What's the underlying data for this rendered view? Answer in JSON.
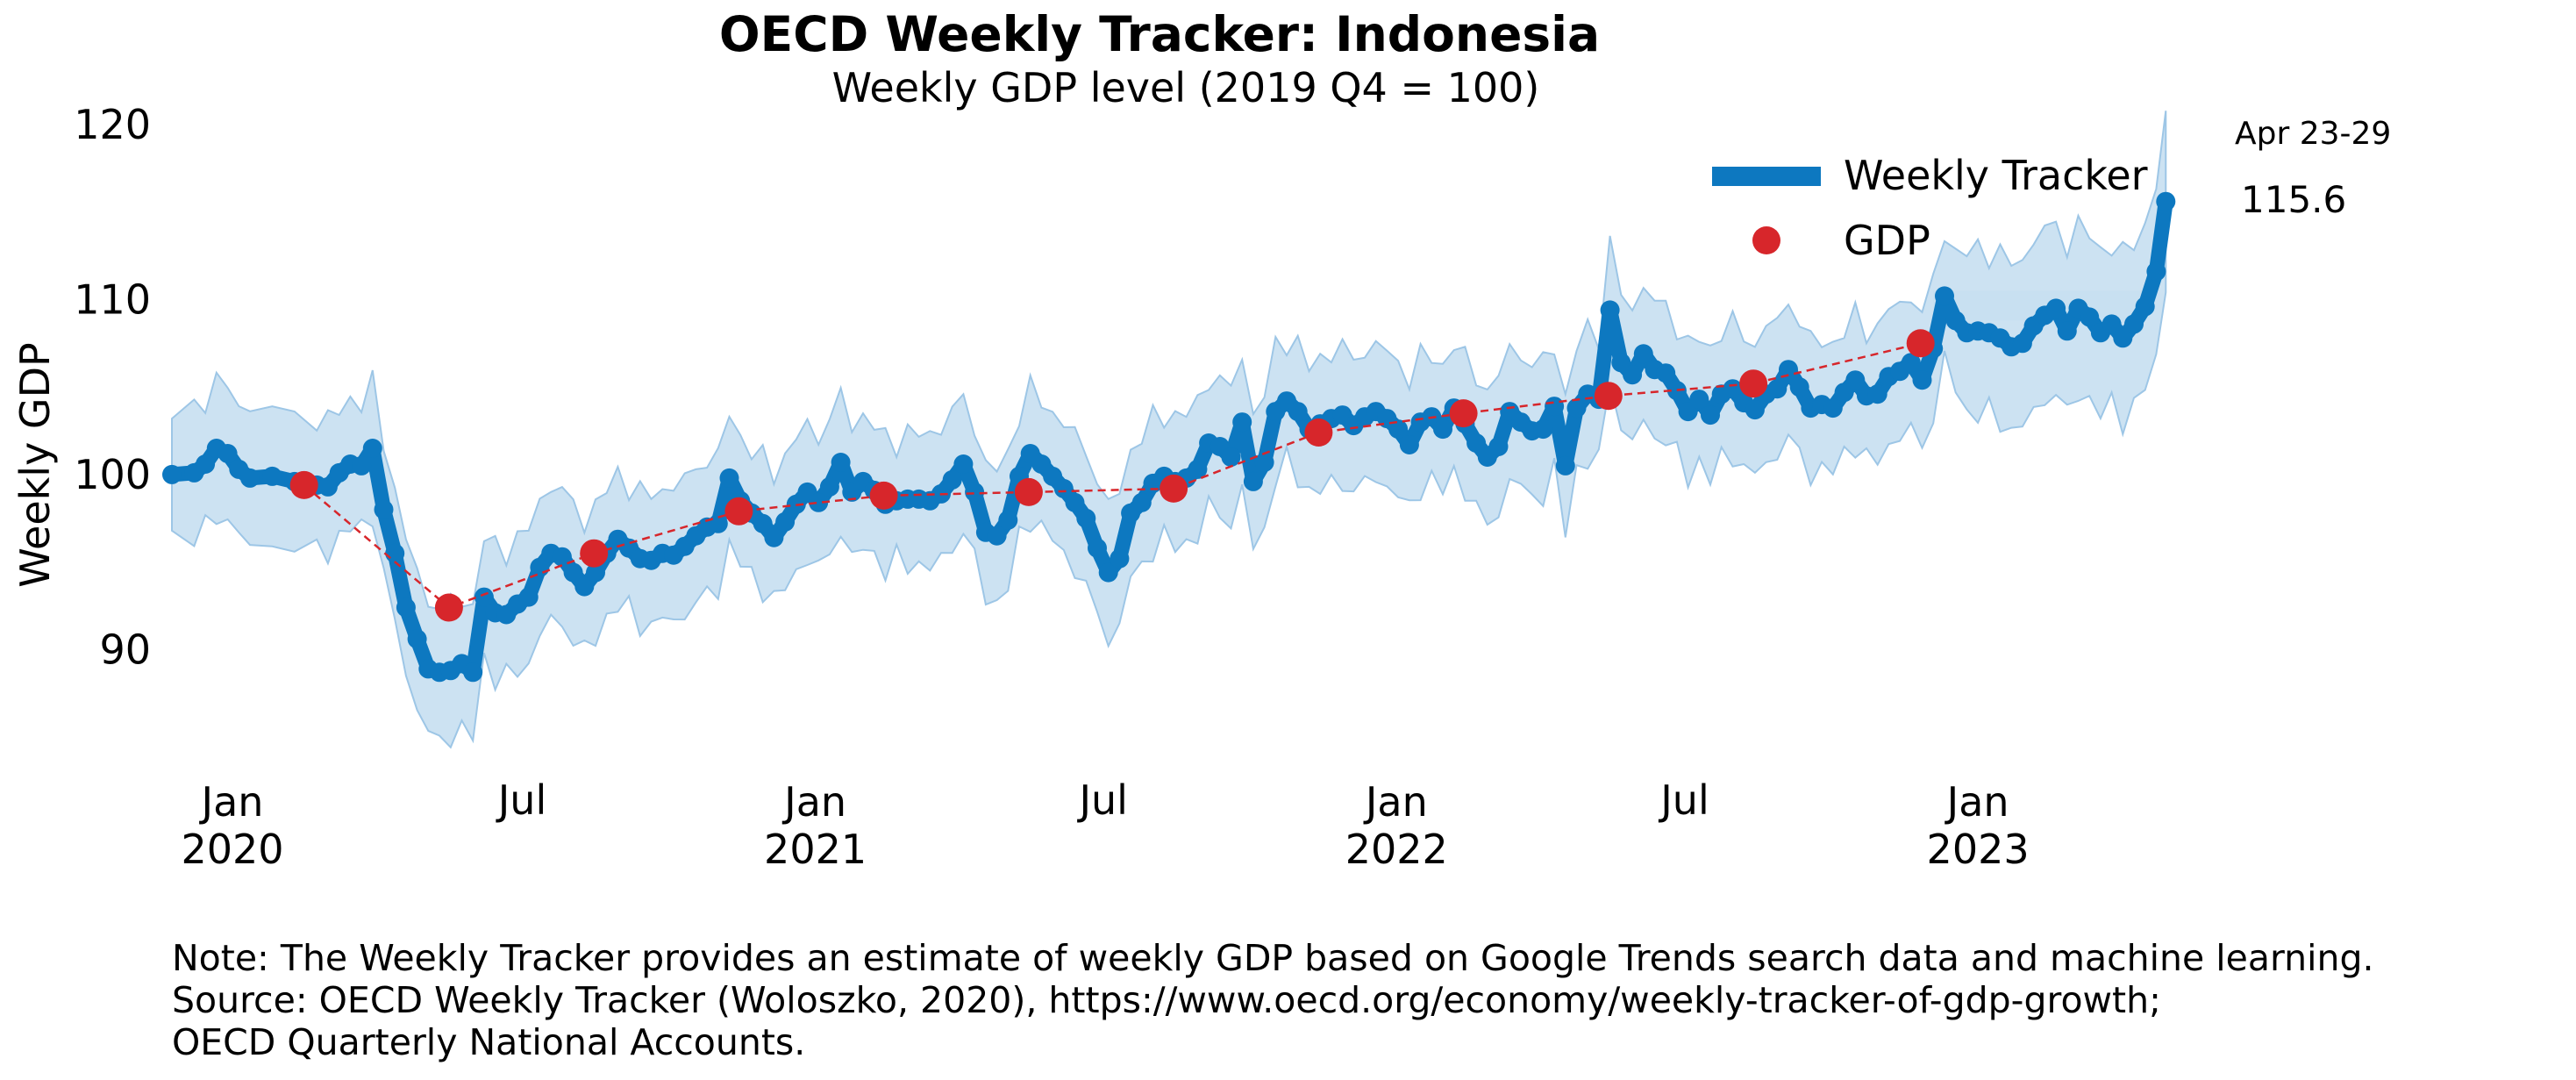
{
  "chart_data": {
    "type": "line",
    "title": "OECD Weekly Tracker: Indonesia",
    "subtitle": "Weekly GDP level (2019 Q4 = 100)",
    "ylabel": "Weekly GDP",
    "xlabel": "",
    "ylim": [
      82,
      121
    ],
    "xlim": [
      "2019-11-24",
      "2023-05-28"
    ],
    "yticks": [
      90,
      100,
      110,
      120
    ],
    "xticks": [
      {
        "date": "2020-01-01",
        "label": [
          "Jan",
          "2020"
        ]
      },
      {
        "date": "2020-07-01",
        "label": [
          "Jul"
        ]
      },
      {
        "date": "2021-01-01",
        "label": [
          "Jan",
          "2021"
        ]
      },
      {
        "date": "2021-07-01",
        "label": [
          "Jul"
        ]
      },
      {
        "date": "2022-01-01",
        "label": [
          "Jan",
          "2022"
        ]
      },
      {
        "date": "2022-07-01",
        "label": [
          "Jul"
        ]
      },
      {
        "date": "2023-01-01",
        "label": [
          "Jan",
          "2023"
        ]
      }
    ],
    "grid": false,
    "legend_position": "top-right",
    "colors": {
      "tracker": "#0d78c0",
      "band": "#c3ddf0",
      "gdp": "#d7262b"
    },
    "series": [
      {
        "name": "Weekly Tracker",
        "style": "thick-line-with-confidence-band",
        "points": [
          [
            "2019-11-24",
            100.0
          ],
          [
            "2019-12-08",
            100.1
          ],
          [
            "2019-12-15",
            100.6
          ],
          [
            "2019-12-22",
            101.5
          ],
          [
            "2019-12-29",
            101.2
          ],
          [
            "2020-01-05",
            100.3
          ],
          [
            "2020-01-12",
            99.8
          ],
          [
            "2020-01-26",
            99.9
          ],
          [
            "2020-02-09",
            99.6
          ],
          [
            "2020-02-23",
            99.4
          ],
          [
            "2020-03-01",
            99.3
          ],
          [
            "2020-03-08",
            100.1
          ],
          [
            "2020-03-15",
            100.6
          ],
          [
            "2020-03-22",
            100.5
          ],
          [
            "2020-03-29",
            101.5
          ],
          [
            "2020-04-05",
            98.0
          ],
          [
            "2020-04-12",
            95.5
          ],
          [
            "2020-04-19",
            92.4
          ],
          [
            "2020-04-26",
            90.6
          ],
          [
            "2020-05-03",
            88.9
          ],
          [
            "2020-05-10",
            88.7
          ],
          [
            "2020-05-17",
            88.8
          ],
          [
            "2020-05-24",
            89.2
          ],
          [
            "2020-05-31",
            88.7
          ],
          [
            "2020-06-07",
            93.0
          ],
          [
            "2020-06-14",
            92.1
          ],
          [
            "2020-06-21",
            92.0
          ],
          [
            "2020-06-28",
            92.6
          ],
          [
            "2020-07-05",
            93.0
          ],
          [
            "2020-07-12",
            94.7
          ],
          [
            "2020-07-19",
            95.5
          ],
          [
            "2020-07-26",
            95.3
          ],
          [
            "2020-08-02",
            94.4
          ],
          [
            "2020-08-09",
            93.6
          ],
          [
            "2020-08-16",
            94.4
          ],
          [
            "2020-08-23",
            95.5
          ],
          [
            "2020-08-30",
            96.3
          ],
          [
            "2020-09-06",
            95.8
          ],
          [
            "2020-09-13",
            95.2
          ],
          [
            "2020-09-20",
            95.1
          ],
          [
            "2020-09-27",
            95.5
          ],
          [
            "2020-10-04",
            95.4
          ],
          [
            "2020-10-11",
            95.9
          ],
          [
            "2020-10-18",
            96.5
          ],
          [
            "2020-10-25",
            97.0
          ],
          [
            "2020-11-01",
            97.2
          ],
          [
            "2020-11-08",
            99.8
          ],
          [
            "2020-11-15",
            98.5
          ],
          [
            "2020-11-22",
            97.8
          ],
          [
            "2020-11-29",
            97.2
          ],
          [
            "2020-12-06",
            96.4
          ],
          [
            "2020-12-13",
            97.3
          ],
          [
            "2020-12-20",
            98.3
          ],
          [
            "2020-12-27",
            99.0
          ],
          [
            "2021-01-03",
            98.4
          ],
          [
            "2021-01-10",
            99.3
          ],
          [
            "2021-01-17",
            100.7
          ],
          [
            "2021-01-24",
            99.0
          ],
          [
            "2021-01-31",
            99.6
          ],
          [
            "2021-02-07",
            99.1
          ],
          [
            "2021-02-14",
            98.3
          ],
          [
            "2021-02-21",
            98.5
          ],
          [
            "2021-02-28",
            98.6
          ],
          [
            "2021-03-07",
            98.6
          ],
          [
            "2021-03-14",
            98.5
          ],
          [
            "2021-03-21",
            98.9
          ],
          [
            "2021-03-28",
            99.7
          ],
          [
            "2021-04-04",
            100.6
          ],
          [
            "2021-04-11",
            99.0
          ],
          [
            "2021-04-18",
            96.7
          ],
          [
            "2021-04-25",
            96.5
          ],
          [
            "2021-05-02",
            97.4
          ],
          [
            "2021-05-09",
            99.9
          ],
          [
            "2021-05-16",
            101.2
          ],
          [
            "2021-05-23",
            100.6
          ],
          [
            "2021-05-30",
            99.9
          ],
          [
            "2021-06-06",
            99.2
          ],
          [
            "2021-06-13",
            98.4
          ],
          [
            "2021-06-20",
            97.5
          ],
          [
            "2021-06-27",
            95.8
          ],
          [
            "2021-07-04",
            94.4
          ],
          [
            "2021-07-11",
            95.2
          ],
          [
            "2021-07-18",
            97.8
          ],
          [
            "2021-07-25",
            98.4
          ],
          [
            "2021-08-01",
            99.5
          ],
          [
            "2021-08-08",
            99.9
          ],
          [
            "2021-08-15",
            99.6
          ],
          [
            "2021-08-22",
            99.8
          ],
          [
            "2021-08-29",
            100.3
          ],
          [
            "2021-09-05",
            101.8
          ],
          [
            "2021-09-12",
            101.6
          ],
          [
            "2021-09-19",
            101.0
          ],
          [
            "2021-09-26",
            103.0
          ],
          [
            "2021-10-03",
            99.6
          ],
          [
            "2021-10-10",
            100.7
          ],
          [
            "2021-10-17",
            103.6
          ],
          [
            "2021-10-24",
            104.2
          ],
          [
            "2021-10-31",
            103.6
          ],
          [
            "2021-11-07",
            102.6
          ],
          [
            "2021-11-14",
            102.9
          ],
          [
            "2021-11-21",
            103.2
          ],
          [
            "2021-11-28",
            103.4
          ],
          [
            "2021-12-05",
            102.8
          ],
          [
            "2021-12-12",
            103.3
          ],
          [
            "2021-12-19",
            103.6
          ],
          [
            "2021-12-26",
            103.2
          ],
          [
            "2022-01-02",
            102.6
          ],
          [
            "2022-01-09",
            101.7
          ],
          [
            "2022-01-16",
            103.0
          ],
          [
            "2022-01-23",
            103.3
          ],
          [
            "2022-01-30",
            102.6
          ],
          [
            "2022-02-06",
            103.8
          ],
          [
            "2022-02-13",
            102.9
          ],
          [
            "2022-02-20",
            101.8
          ],
          [
            "2022-02-27",
            101.0
          ],
          [
            "2022-03-06",
            101.6
          ],
          [
            "2022-03-13",
            103.6
          ],
          [
            "2022-03-20",
            103.0
          ],
          [
            "2022-03-27",
            102.5
          ],
          [
            "2022-04-03",
            102.6
          ],
          [
            "2022-04-10",
            103.9
          ],
          [
            "2022-04-17",
            100.5
          ],
          [
            "2022-04-24",
            103.8
          ],
          [
            "2022-05-01",
            104.6
          ],
          [
            "2022-05-08",
            104.3
          ],
          [
            "2022-05-15",
            109.4
          ],
          [
            "2022-05-22",
            106.4
          ],
          [
            "2022-05-29",
            105.7
          ],
          [
            "2022-06-05",
            106.9
          ],
          [
            "2022-06-12",
            106.0
          ],
          [
            "2022-06-19",
            105.8
          ],
          [
            "2022-06-26",
            104.8
          ],
          [
            "2022-07-03",
            103.6
          ],
          [
            "2022-07-10",
            104.3
          ],
          [
            "2022-07-17",
            103.4
          ],
          [
            "2022-07-24",
            104.6
          ],
          [
            "2022-07-31",
            104.9
          ],
          [
            "2022-08-07",
            104.1
          ],
          [
            "2022-08-14",
            103.7
          ],
          [
            "2022-08-21",
            104.6
          ],
          [
            "2022-08-28",
            104.9
          ],
          [
            "2022-09-04",
            106.0
          ],
          [
            "2022-09-11",
            105.0
          ],
          [
            "2022-09-18",
            103.8
          ],
          [
            "2022-09-25",
            104.0
          ],
          [
            "2022-10-02",
            103.8
          ],
          [
            "2022-10-09",
            104.7
          ],
          [
            "2022-10-16",
            105.4
          ],
          [
            "2022-10-23",
            104.5
          ],
          [
            "2022-10-30",
            104.6
          ],
          [
            "2022-11-06",
            105.6
          ],
          [
            "2022-11-13",
            105.9
          ],
          [
            "2022-11-20",
            106.4
          ],
          [
            "2022-11-27",
            105.4
          ],
          [
            "2022-12-04",
            107.2
          ],
          [
            "2022-12-11",
            110.2
          ],
          [
            "2022-12-18",
            108.8
          ],
          [
            "2022-12-25",
            108.1
          ],
          [
            "2023-01-01",
            108.2
          ],
          [
            "2023-01-08",
            108.1
          ],
          [
            "2023-01-15",
            107.8
          ],
          [
            "2023-01-22",
            107.3
          ],
          [
            "2023-01-29",
            107.5
          ],
          [
            "2023-02-05",
            108.5
          ],
          [
            "2023-02-12",
            109.1
          ],
          [
            "2023-02-19",
            109.5
          ],
          [
            "2023-02-26",
            108.2
          ],
          [
            "2023-03-05",
            109.5
          ],
          [
            "2023-03-12",
            109.0
          ],
          [
            "2023-03-19",
            108.1
          ],
          [
            "2023-03-26",
            108.6
          ],
          [
            "2023-04-02",
            107.8
          ],
          [
            "2023-04-09",
            108.6
          ],
          [
            "2023-04-16",
            109.6
          ],
          [
            "2023-04-23",
            111.6
          ],
          [
            "2023-04-29",
            115.6
          ]
        ]
      },
      {
        "name": "GDP",
        "style": "dots-dashed",
        "points": [
          [
            "2020-02-15",
            99.4
          ],
          [
            "2020-05-16",
            92.4
          ],
          [
            "2020-08-15",
            95.5
          ],
          [
            "2020-11-14",
            97.9
          ],
          [
            "2021-02-13",
            98.8
          ],
          [
            "2021-05-15",
            99.0
          ],
          [
            "2021-08-14",
            99.2
          ],
          [
            "2021-11-13",
            102.4
          ],
          [
            "2022-02-12",
            103.5
          ],
          [
            "2022-05-14",
            104.5
          ],
          [
            "2022-08-13",
            105.2
          ],
          [
            "2022-11-26",
            107.5
          ]
        ]
      }
    ],
    "annotations": [
      {
        "text": "Apr 23-29",
        "date": "2023-04-29"
      },
      {
        "text": "115.6",
        "date": "2023-04-29"
      }
    ]
  },
  "note": {
    "line1": "Note: The Weekly Tracker provides an estimate of weekly GDP based on Google Trends search data and machine learning.",
    "line2": "Source: OECD Weekly Tracker (Woloszko, 2020), https://www.oecd.org/economy/weekly-tracker-of-gdp-growth;",
    "line3": "OECD Quarterly National Accounts."
  }
}
